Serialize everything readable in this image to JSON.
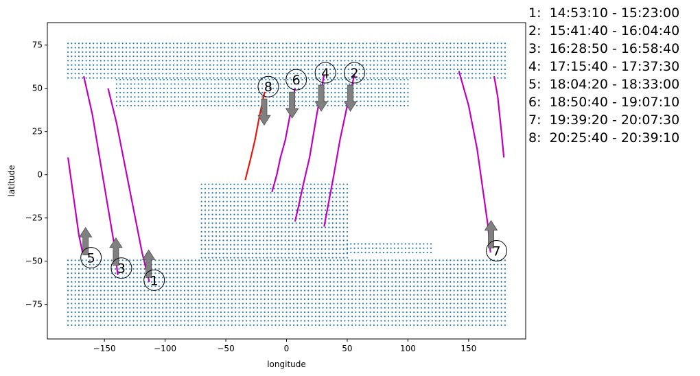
{
  "chart_data": {
    "type": "scatter",
    "title": "",
    "xlabel": "longitude",
    "ylabel": "latitude",
    "xlim": [
      -197,
      197
    ],
    "ylim": [
      -95,
      88
    ],
    "xticks": [
      -150,
      -100,
      -50,
      0,
      50,
      100,
      150
    ],
    "yticks": [
      -75,
      -50,
      -25,
      0,
      25,
      50,
      75
    ],
    "grid": false,
    "colors": {
      "coverage_points": "#1f77b4",
      "pass_tracks": "#bf00bf",
      "last_track": "#e6170b",
      "arrows": "#808080",
      "marker_circle": "#000000"
    },
    "coverage_regions": [
      {
        "lat_range": [
          56,
          77
        ],
        "lon_range": [
          -180,
          180
        ],
        "note": "northern band"
      },
      {
        "lat_range": [
          40,
          56
        ],
        "lon_range": [
          -140,
          100
        ]
      },
      {
        "lat_range": [
          -87,
          -48
        ],
        "lon_range": [
          -180,
          180
        ],
        "note": "southern band"
      },
      {
        "lat_range": [
          -48,
          -5
        ],
        "lon_range": [
          -70,
          50
        ]
      },
      {
        "lat_range": [
          -45,
          -40
        ],
        "lon_range": [
          50,
          120
        ]
      }
    ],
    "series": [
      {
        "id": 1,
        "color": "#bf00bf",
        "x": [
          -147,
          -140,
          -133,
          -126,
          -119,
          -113
        ],
        "y": [
          50,
          30,
          5,
          -20,
          -45,
          -62
        ]
      },
      {
        "id": 2,
        "color": "#bf00bf",
        "x": [
          56,
          50,
          44,
          39,
          35,
          31
        ],
        "y": [
          58,
          40,
          20,
          0,
          -15,
          -30
        ]
      },
      {
        "id": 3,
        "color": "#bf00bf",
        "x": [
          -167,
          -160,
          -154,
          -148,
          -142,
          -139
        ],
        "y": [
          57,
          35,
          10,
          -15,
          -40,
          -58
        ]
      },
      {
        "id": 4,
        "color": "#bf00bf",
        "x": [
          31,
          25,
          19,
          14,
          10,
          7
        ],
        "y": [
          58,
          35,
          10,
          -5,
          -18,
          -27
        ]
      },
      {
        "id": 5,
        "color": "#bf00bf",
        "x": [
          -180,
          -177,
          -174,
          -171,
          -168
        ],
        "y": [
          10,
          -5,
          -20,
          -35,
          -45
        ]
      },
      {
        "id": 6,
        "color": "#bf00bf",
        "x": [
          7,
          3,
          -1,
          -5,
          -8,
          -12
        ],
        "y": [
          50,
          35,
          20,
          10,
          0,
          -10
        ]
      },
      {
        "id": 7,
        "color": "#bf00bf",
        "x": [
          142,
          150,
          157,
          162,
          166,
          168,
          171,
          174,
          177,
          179
        ],
        "y": [
          60,
          40,
          15,
          -10,
          -30,
          -45,
          57,
          45,
          25,
          10
        ]
      },
      {
        "id": 8,
        "color": "#e6170b",
        "x": [
          -18,
          -22,
          -26,
          -30,
          -34
        ],
        "y": [
          48,
          35,
          20,
          8,
          -3
        ]
      }
    ],
    "markers": [
      {
        "label": "1",
        "x": -109,
        "y": -61,
        "arrow": "up"
      },
      {
        "label": "2",
        "x": 56,
        "y": 59,
        "arrow": "down"
      },
      {
        "label": "3",
        "x": -136,
        "y": -54,
        "arrow": "up"
      },
      {
        "label": "4",
        "x": 32,
        "y": 59,
        "arrow": "down"
      },
      {
        "label": "5",
        "x": -161,
        "y": -48,
        "arrow": "up"
      },
      {
        "label": "6",
        "x": 8,
        "y": 55,
        "arrow": "down"
      },
      {
        "label": "7",
        "x": 173,
        "y": -44,
        "arrow": "up"
      },
      {
        "label": "8",
        "x": -15,
        "y": 51,
        "arrow": "down"
      }
    ],
    "legend_placement": "right, outside plot",
    "legend": [
      "1:  14:53:10 - 15:23:00",
      "2:  15:41:40 - 16:04:40",
      "3:  16:28:50 - 16:58:40",
      "4:  17:15:40 - 17:37:30",
      "5:  18:04:20 - 18:33:00",
      "6:  18:50:40 - 19:07:10",
      "7:  19:39:20 - 20:07:30",
      "8:  20:25:40 - 20:39:10"
    ]
  }
}
